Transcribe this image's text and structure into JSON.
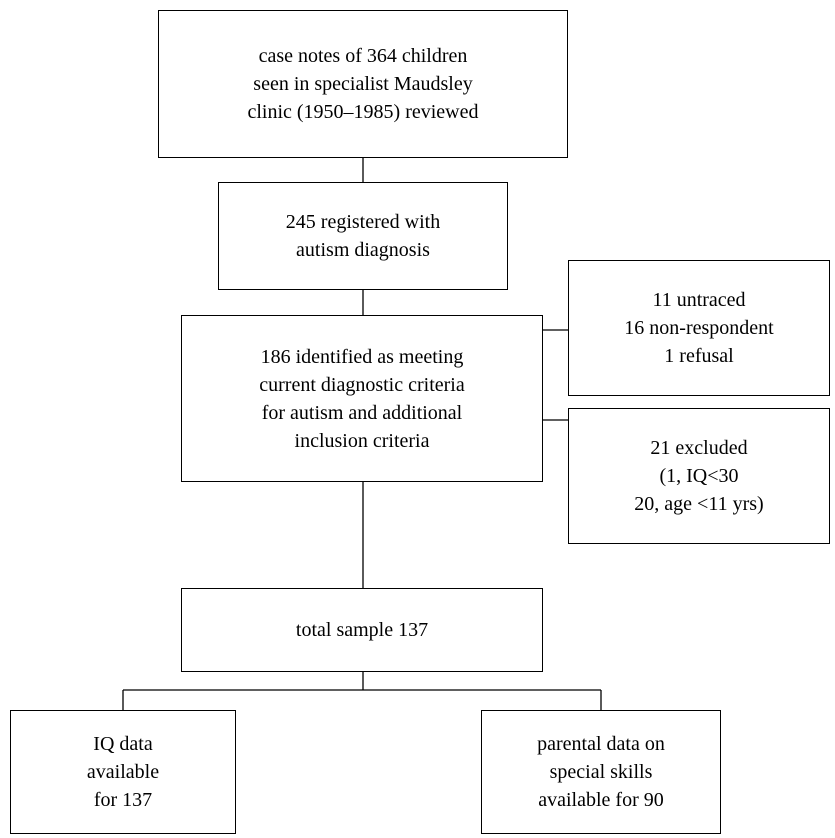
{
  "boxes": {
    "case_notes": [
      "case notes of 364 children",
      "seen in specialist Maudsley",
      "clinic (1950–1985) reviewed"
    ],
    "registered": [
      "245 registered with",
      "autism diagnosis"
    ],
    "identified": [
      "186 identified as meeting",
      "current diagnostic criteria",
      "for autism and additional",
      "inclusion criteria"
    ],
    "untraced": [
      "11 untraced",
      "16 non-respondent",
      "1 refusal"
    ],
    "excluded": [
      "21 excluded",
      "(1, IQ<30",
      "20, age <11 yrs)"
    ],
    "total": [
      "total sample 137"
    ],
    "iq": [
      "IQ data",
      "available",
      "for 137"
    ],
    "parental": [
      "parental data on",
      "special skills",
      "available for 90"
    ]
  }
}
